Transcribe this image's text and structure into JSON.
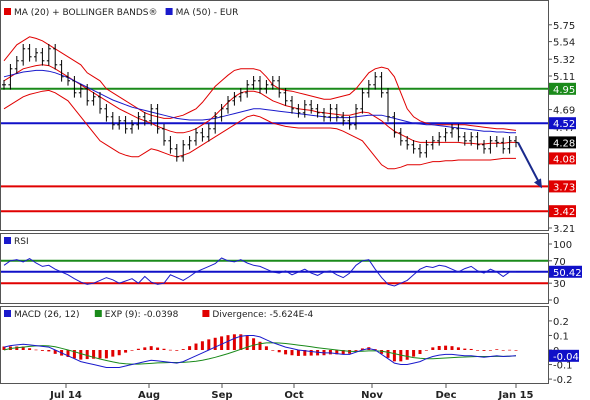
{
  "chart_data": [
    {
      "type": "line",
      "panel": "price",
      "legend": [
        {
          "label": "MA (20) + BOLLINGER BANDS®",
          "color": "#e00000"
        },
        {
          "label": "MA (50) - EUR",
          "color": "#1a1acc"
        }
      ],
      "y_ticks": [
        "5.75",
        "5.54",
        "5.32",
        "5.11",
        "4.69",
        "4.47",
        "3.21"
      ],
      "ylim": [
        3.21,
        5.96
      ],
      "x_ticks": [
        "Jul 14",
        "Aug",
        "Sep",
        "Oct",
        "Nov",
        "Dec",
        "Jan 15"
      ],
      "last_price": 4.28,
      "levels": [
        {
          "value": 4.95,
          "label": "4.95",
          "color": "#1a8a1a"
        },
        {
          "value": 4.52,
          "label": "4.52",
          "color": "#1010c8"
        },
        {
          "value": 4.08,
          "label": "4.08",
          "color": "#e00000"
        },
        {
          "value": 3.73,
          "label": "3.73",
          "color": "#e00000"
        },
        {
          "value": 3.42,
          "label": "3.42",
          "color": "#e00000"
        }
      ],
      "close": [
        5.0,
        5.2,
        5.3,
        5.45,
        5.35,
        5.4,
        5.3,
        5.45,
        5.25,
        5.1,
        5.05,
        4.9,
        4.95,
        4.8,
        4.85,
        4.7,
        4.6,
        4.5,
        4.55,
        4.45,
        4.5,
        4.6,
        4.55,
        4.7,
        4.45,
        4.3,
        4.2,
        4.1,
        4.25,
        4.3,
        4.4,
        4.35,
        4.45,
        4.6,
        4.7,
        4.8,
        4.85,
        4.9,
        5.0,
        5.05,
        4.95,
        5.0,
        5.05,
        4.9,
        4.8,
        4.7,
        4.65,
        4.75,
        4.7,
        4.65,
        4.6,
        4.7,
        4.6,
        4.55,
        4.5,
        4.7,
        4.9,
        5.0,
        5.1,
        4.9,
        4.6,
        4.4,
        4.3,
        4.25,
        4.2,
        4.15,
        4.25,
        4.3,
        4.35,
        4.4,
        4.45,
        4.35,
        4.3,
        4.35,
        4.25,
        4.2,
        4.3,
        4.28,
        4.2,
        4.3,
        4.28
      ],
      "ma20": [
        5.05,
        5.1,
        5.15,
        5.2,
        5.22,
        5.24,
        5.25,
        5.24,
        5.2,
        5.15,
        5.1,
        5.05,
        5.0,
        4.95,
        4.9,
        4.85,
        4.8,
        4.75,
        4.7,
        4.66,
        4.62,
        4.58,
        4.55,
        4.52,
        4.48,
        4.45,
        4.42,
        4.4,
        4.4,
        4.42,
        4.45,
        4.5,
        4.55,
        4.62,
        4.7,
        4.78,
        4.85,
        4.9,
        4.92,
        4.92,
        4.9,
        4.85,
        4.8,
        4.77,
        4.74,
        4.72,
        4.7,
        4.69,
        4.68,
        4.66,
        4.65,
        4.64,
        4.63,
        4.62,
        4.62,
        4.64,
        4.66,
        4.65,
        4.6,
        4.55,
        4.48,
        4.42,
        4.38,
        4.34,
        4.3,
        4.28,
        4.28,
        4.28,
        4.28,
        4.28,
        4.28,
        4.28,
        4.27,
        4.27,
        4.26,
        4.26,
        4.27,
        4.27,
        4.27,
        4.28,
        4.28
      ],
      "bb_upper": [
        5.3,
        5.4,
        5.5,
        5.55,
        5.6,
        5.58,
        5.55,
        5.5,
        5.45,
        5.4,
        5.35,
        5.3,
        5.25,
        5.15,
        5.1,
        5.05,
        4.95,
        4.9,
        4.85,
        4.8,
        4.75,
        4.7,
        4.65,
        4.62,
        4.6,
        4.58,
        4.58,
        4.6,
        4.62,
        4.66,
        4.7,
        4.78,
        4.88,
        4.98,
        5.05,
        5.12,
        5.18,
        5.2,
        5.2,
        5.2,
        5.18,
        5.1,
        5.0,
        4.95,
        4.93,
        4.92,
        4.9,
        4.88,
        4.86,
        4.84,
        4.82,
        4.82,
        4.84,
        4.86,
        4.88,
        4.95,
        5.05,
        5.15,
        5.2,
        5.22,
        5.2,
        5.1,
        4.9,
        4.7,
        4.6,
        4.55,
        4.52,
        4.5,
        4.5,
        4.5,
        4.5,
        4.5,
        4.5,
        4.49,
        4.48,
        4.47,
        4.46,
        4.45,
        4.45,
        4.44,
        4.43
      ],
      "bb_lower": [
        4.7,
        4.75,
        4.8,
        4.85,
        4.88,
        4.9,
        4.92,
        4.93,
        4.9,
        4.85,
        4.8,
        4.7,
        4.6,
        4.5,
        4.4,
        4.3,
        4.25,
        4.2,
        4.15,
        4.12,
        4.1,
        4.1,
        4.15,
        4.2,
        4.18,
        4.15,
        4.12,
        4.1,
        4.12,
        4.15,
        4.2,
        4.25,
        4.3,
        4.35,
        4.4,
        4.45,
        4.5,
        4.55,
        4.6,
        4.62,
        4.6,
        4.56,
        4.52,
        4.5,
        4.48,
        4.47,
        4.46,
        4.46,
        4.46,
        4.46,
        4.46,
        4.46,
        4.45,
        4.42,
        4.38,
        4.34,
        4.3,
        4.2,
        4.1,
        4.0,
        3.95,
        3.95,
        3.97,
        4.0,
        4.0,
        4.0,
        4.02,
        4.04,
        4.04,
        4.05,
        4.05,
        4.06,
        4.06,
        4.06,
        4.06,
        4.06,
        4.06,
        4.07,
        4.08,
        4.08,
        4.08
      ],
      "ma50": [
        5.1,
        5.12,
        5.14,
        5.16,
        5.17,
        5.18,
        5.18,
        5.17,
        5.15,
        5.12,
        5.09,
        5.05,
        5.01,
        4.97,
        4.93,
        4.89,
        4.85,
        4.81,
        4.78,
        4.75,
        4.72,
        4.7,
        4.68,
        4.66,
        4.64,
        4.62,
        4.6,
        4.58,
        4.57,
        4.56,
        4.56,
        4.56,
        4.57,
        4.58,
        4.6,
        4.62,
        4.64,
        4.66,
        4.68,
        4.7,
        4.7,
        4.69,
        4.68,
        4.67,
        4.66,
        4.65,
        4.64,
        4.63,
        4.62,
        4.61,
        4.6,
        4.59,
        4.59,
        4.59,
        4.59,
        4.6,
        4.61,
        4.62,
        4.62,
        4.62,
        4.6,
        4.58,
        4.56,
        4.54,
        4.52,
        4.51,
        4.5,
        4.5,
        4.49,
        4.48,
        4.47,
        4.46,
        4.45,
        4.44,
        4.43,
        4.42,
        4.42,
        4.41,
        4.41,
        4.4,
        4.4
      ],
      "arrow_target": 3.73
    },
    {
      "type": "line",
      "panel": "rsi",
      "legend": [
        {
          "label": "RSI",
          "color": "#1a1acc"
        }
      ],
      "y_ticks": [
        "100",
        "70",
        "30",
        "0"
      ],
      "ylim": [
        0,
        100
      ],
      "levels": [
        {
          "value": 70,
          "label": "70",
          "color": "#1a8a1a"
        },
        {
          "value": 50.42,
          "label": "50.42",
          "color": "#1010c8"
        },
        {
          "value": 30,
          "label": "30",
          "color": "#e00000"
        }
      ],
      "values": [
        62,
        70,
        72,
        68,
        74,
        66,
        60,
        62,
        55,
        50,
        45,
        38,
        32,
        28,
        30,
        35,
        40,
        36,
        30,
        34,
        38,
        30,
        42,
        32,
        28,
        30,
        45,
        40,
        35,
        42,
        50,
        55,
        60,
        65,
        75,
        70,
        68,
        72,
        66,
        62,
        60,
        55,
        50,
        48,
        52,
        45,
        50,
        55,
        48,
        44,
        50,
        52,
        45,
        40,
        48,
        62,
        70,
        72,
        55,
        40,
        28,
        25,
        30,
        35,
        45,
        55,
        60,
        58,
        62,
        60,
        55,
        50,
        56,
        60,
        52,
        48,
        55,
        50,
        42,
        50,
        50.42
      ]
    },
    {
      "type": "line",
      "panel": "macd",
      "legend": [
        {
          "label": "MACD (26, 12)",
          "color": "#1a1acc"
        },
        {
          "label": "EXP (9): -0.0398",
          "color": "#1a8a1a"
        },
        {
          "label": "Divergence: -5.624E-4",
          "color": "#e00000"
        }
      ],
      "y_ticks": [
        "0.2",
        "0.1",
        "0",
        "-0.1",
        "-0.2"
      ],
      "ylim": [
        -0.22,
        0.22
      ],
      "last_value": -0.04,
      "last_label": "-0.04",
      "macd": [
        0.02,
        0.03,
        0.035,
        0.04,
        0.035,
        0.03,
        0.025,
        0.02,
        0.0,
        -0.02,
        -0.04,
        -0.06,
        -0.08,
        -0.09,
        -0.1,
        -0.11,
        -0.12,
        -0.12,
        -0.12,
        -0.11,
        -0.1,
        -0.09,
        -0.08,
        -0.07,
        -0.075,
        -0.08,
        -0.085,
        -0.09,
        -0.08,
        -0.06,
        -0.04,
        -0.02,
        0.0,
        0.02,
        0.04,
        0.06,
        0.08,
        0.095,
        0.1,
        0.1,
        0.09,
        0.07,
        0.05,
        0.035,
        0.02,
        0.01,
        0.0,
        -0.005,
        -0.01,
        -0.015,
        -0.02,
        -0.02,
        -0.025,
        -0.03,
        -0.03,
        -0.015,
        0.0,
        0.01,
        0.0,
        -0.03,
        -0.06,
        -0.09,
        -0.1,
        -0.1,
        -0.09,
        -0.08,
        -0.06,
        -0.045,
        -0.035,
        -0.03,
        -0.03,
        -0.035,
        -0.04,
        -0.04,
        -0.045,
        -0.05,
        -0.045,
        -0.04,
        -0.045,
        -0.042,
        -0.04
      ],
      "signal": [
        0.0,
        0.01,
        0.015,
        0.02,
        0.025,
        0.028,
        0.03,
        0.028,
        0.022,
        0.012,
        0.0,
        -0.012,
        -0.025,
        -0.038,
        -0.05,
        -0.062,
        -0.072,
        -0.082,
        -0.09,
        -0.095,
        -0.097,
        -0.097,
        -0.095,
        -0.092,
        -0.089,
        -0.087,
        -0.086,
        -0.086,
        -0.085,
        -0.082,
        -0.077,
        -0.07,
        -0.061,
        -0.05,
        -0.038,
        -0.025,
        -0.01,
        0.005,
        0.02,
        0.033,
        0.043,
        0.049,
        0.05,
        0.048,
        0.045,
        0.04,
        0.034,
        0.028,
        0.022,
        0.016,
        0.01,
        0.005,
        0.0,
        -0.005,
        -0.009,
        -0.01,
        -0.009,
        -0.006,
        -0.005,
        -0.008,
        -0.015,
        -0.025,
        -0.035,
        -0.044,
        -0.052,
        -0.057,
        -0.06,
        -0.06,
        -0.058,
        -0.055,
        -0.052,
        -0.05,
        -0.048,
        -0.046,
        -0.045,
        -0.045,
        -0.045,
        -0.044,
        -0.044,
        -0.043,
        -0.0398
      ]
    }
  ]
}
